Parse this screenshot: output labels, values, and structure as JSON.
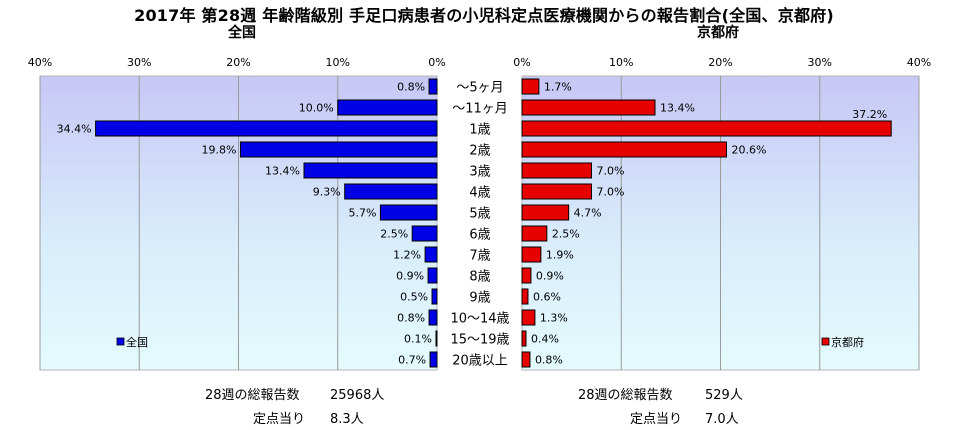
{
  "title": "2017年 第28週 年齢階級別 手足口病患者の小児科定点医療機関からの報告割合(全国、京都府)",
  "chart_data": [
    {
      "type": "bar",
      "orientation": "horizontal",
      "direction": "right-to-left",
      "title": "全国",
      "categories": [
        "～5ヶ月",
        "～11ヶ月",
        "1歳",
        "2歳",
        "3歳",
        "4歳",
        "5歳",
        "6歳",
        "7歳",
        "8歳",
        "9歳",
        "10～14歳",
        "15～19歳",
        "20歳以上"
      ],
      "values": [
        0.8,
        10.0,
        34.4,
        19.8,
        13.4,
        9.3,
        5.7,
        2.5,
        1.2,
        0.9,
        0.5,
        0.8,
        0.1,
        0.7
      ],
      "value_labels": [
        "0.8%",
        "10.0%",
        "34.4%",
        "19.8%",
        "13.4%",
        "9.3%",
        "5.7%",
        "2.5%",
        "1.2%",
        "0.9%",
        "0.5%",
        "0.8%",
        "0.1%",
        "0.7%"
      ],
      "series": [
        {
          "name": "全国",
          "color": "#0000e6"
        }
      ],
      "xlim": [
        0,
        40
      ],
      "ticks": [
        "40%",
        "30%",
        "20%",
        "10%",
        "0%"
      ],
      "legend": "bottom-left",
      "grid": true
    },
    {
      "type": "bar",
      "orientation": "horizontal",
      "direction": "left-to-right",
      "title": "京都府",
      "categories": [
        "～5ヶ月",
        "～11ヶ月",
        "1歳",
        "2歳",
        "3歳",
        "4歳",
        "5歳",
        "6歳",
        "7歳",
        "8歳",
        "9歳",
        "10～14歳",
        "15～19歳",
        "20歳以上"
      ],
      "values": [
        1.7,
        13.4,
        37.2,
        20.6,
        7.0,
        7.0,
        4.7,
        2.5,
        1.9,
        0.9,
        0.6,
        1.3,
        0.4,
        0.8
      ],
      "value_labels": [
        "1.7%",
        "13.4%",
        "37.2%",
        "20.6%",
        "7.0%",
        "7.0%",
        "4.7%",
        "2.5%",
        "1.9%",
        "0.9%",
        "0.6%",
        "1.3%",
        "0.4%",
        "0.8%"
      ],
      "series": [
        {
          "name": "京都府",
          "color": "#e60000"
        }
      ],
      "xlim": [
        0,
        40
      ],
      "ticks": [
        "0%",
        "10%",
        "20%",
        "30%",
        "40%"
      ],
      "legend": "bottom-right",
      "grid": true
    }
  ],
  "stats": {
    "national": {
      "reports_label": "28週の総報告数",
      "reports_value": "25968人",
      "per_site_label": "定点当り",
      "per_site_value": "8.3人"
    },
    "kyoto": {
      "reports_label": "28週の総報告数",
      "reports_value": "529人",
      "per_site_label": "定点当り",
      "per_site_value": "7.0人"
    }
  }
}
